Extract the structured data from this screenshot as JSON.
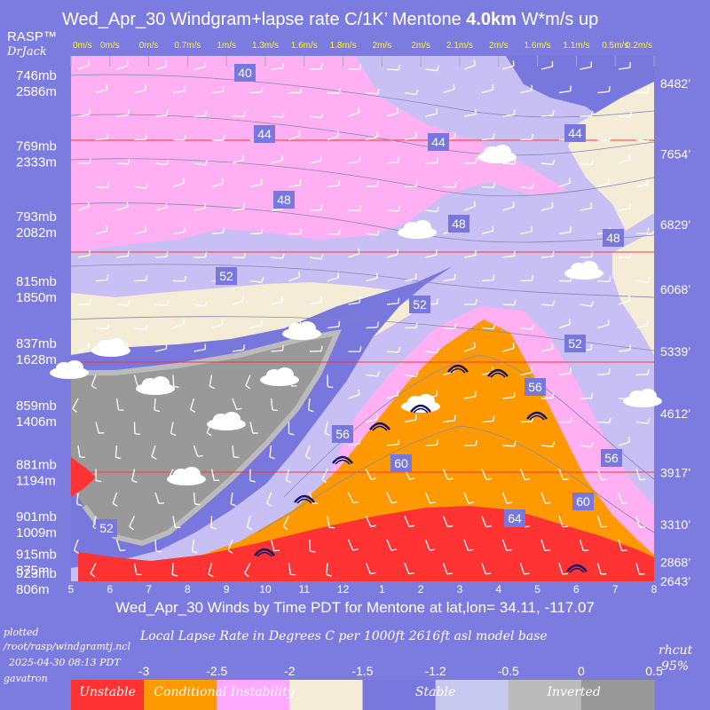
{
  "chart_data": {
    "type": "windgram",
    "title_prefix": "Wed_Apr_30 Windgram+lapse rate C/1K’  Mentone ",
    "title_bold": "4.0km",
    "title_suffix": "  W*m/s up",
    "brand": "RASP™",
    "brand_sub": "DrJack",
    "x_title": "Wed_Apr_30 Winds by Time PDT for Mentone at lat,lon= 34.11, -117.07",
    "x_ticks": [
      "5",
      "6",
      "7",
      "8",
      "9",
      "10",
      "11",
      "12",
      "1",
      "2",
      "3",
      "4",
      "5",
      "6",
      "7",
      "8"
    ],
    "wstar_values": [
      "0m/s",
      "0m/s",
      "0m/s",
      "0.7m/s",
      "1m/s",
      "1.3m/s",
      "1.6m/s",
      "1.8m/s",
      "2m/s",
      "2m/s",
      "2.1m/s",
      "2m/s",
      "1.6m/s",
      "1.1m/s",
      "0.5m/s",
      "0.2m/s"
    ],
    "pressure_levels": [
      {
        "mb": "746mb",
        "m": "2586m",
        "ft": "8482’",
        "alt_ft": 8482
      },
      {
        "mb": "769mb",
        "m": "2333m",
        "ft": "7654’",
        "alt_ft": 7654
      },
      {
        "mb": "793mb",
        "m": "2082m",
        "ft": "6829’",
        "alt_ft": 6829
      },
      {
        "mb": "815mb",
        "m": "1850m",
        "ft": "6068’",
        "alt_ft": 6068
      },
      {
        "mb": "837mb",
        "m": "1628m",
        "ft": "5339’",
        "alt_ft": 5339
      },
      {
        "mb": "859mb",
        "m": "1406m",
        "ft": "4612’",
        "alt_ft": 4612
      },
      {
        "mb": "881mb",
        "m": "1194m",
        "ft": "3917’",
        "alt_ft": 3917
      },
      {
        "mb": "901mb",
        "m": "1009m",
        "ft": "3310’",
        "alt_ft": 3310
      },
      {
        "mb": "915mb",
        "m": "875m",
        "ft": "2868’",
        "alt_ft": 2868
      },
      {
        "mb": "923mb",
        "m": "806m",
        "ft": "2643’",
        "alt_ft": 2643
      }
    ],
    "contour_labels": [
      "40",
      "44",
      "44",
      "44",
      "48",
      "48",
      "48",
      "52",
      "52",
      "52",
      "52",
      "56",
      "56",
      "56",
      "60",
      "60",
      "64"
    ],
    "footnote_lines": [
      "plotted",
      "/root/rasp/windgramtj.ncl",
      "2025-04-30 08:13 PDT",
      "gavatron"
    ],
    "lapse_subtitle": "Local Lapse Rate in Degrees C per 1000ft   2616ft asl model base",
    "rhcut": "rhcut",
    "rhcut_value": "95%",
    "legend_ticks": [
      "-3",
      "-2.5",
      "-2",
      "-1.5",
      "-1.2",
      "-0.5",
      "0",
      "0.5"
    ],
    "legend_labels": [
      "Unstable",
      "Conditional Instability",
      "Stable",
      "Inverted"
    ],
    "legend_colors": [
      "#ff3333",
      "#ff9900",
      "#ffaaff",
      "#f5ecd8",
      "#7777dd",
      "#c8c8ee",
      "#bbbbbb",
      "#999999"
    ],
    "region_colors": {
      "background_bluegrey": "#7b7be0",
      "stable_lavender": "#c8c0f4",
      "stable_blue": "#7777dd",
      "pink": "#ffb0f2",
      "cream": "#f5ecd8",
      "orange": "#ff9900",
      "red": "#ff3333",
      "grey": "#999999",
      "lightgrey": "#bbbbbb"
    }
  }
}
